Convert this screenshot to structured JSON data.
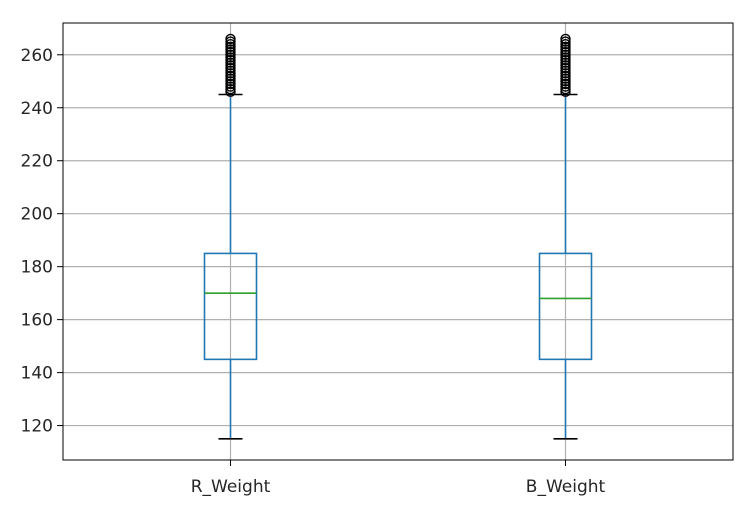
{
  "chart_data": {
    "type": "box",
    "title": "",
    "xlabel": "",
    "ylabel": "",
    "categories": [
      "R_Weight",
      "B_Weight"
    ],
    "ylim": [
      107,
      272
    ],
    "yticks": [
      120,
      140,
      160,
      180,
      200,
      220,
      240,
      260
    ],
    "grid": true,
    "legend": "none",
    "colors": {
      "box": "#1f77b4",
      "median": "#2ca02c",
      "flier": "#000000",
      "grid": "#b0b0b0",
      "axes": "#000000"
    },
    "boxes": [
      {
        "name": "R_Weight",
        "whisker_low": 115,
        "q1": 145,
        "median": 170,
        "q3": 185,
        "whisker_high": 245,
        "fliers": [
          246,
          247,
          248,
          249,
          250,
          251,
          252,
          253,
          254,
          255,
          256,
          257,
          258,
          259,
          260,
          261,
          262,
          263,
          264,
          265,
          266
        ]
      },
      {
        "name": "B_Weight",
        "whisker_low": 115,
        "q1": 145,
        "median": 168,
        "q3": 185,
        "whisker_high": 245,
        "fliers": [
          246,
          247,
          248,
          249,
          250,
          251,
          252,
          253,
          254,
          255,
          256,
          257,
          258,
          259,
          260,
          261,
          262,
          263,
          264,
          265,
          266
        ]
      }
    ]
  }
}
